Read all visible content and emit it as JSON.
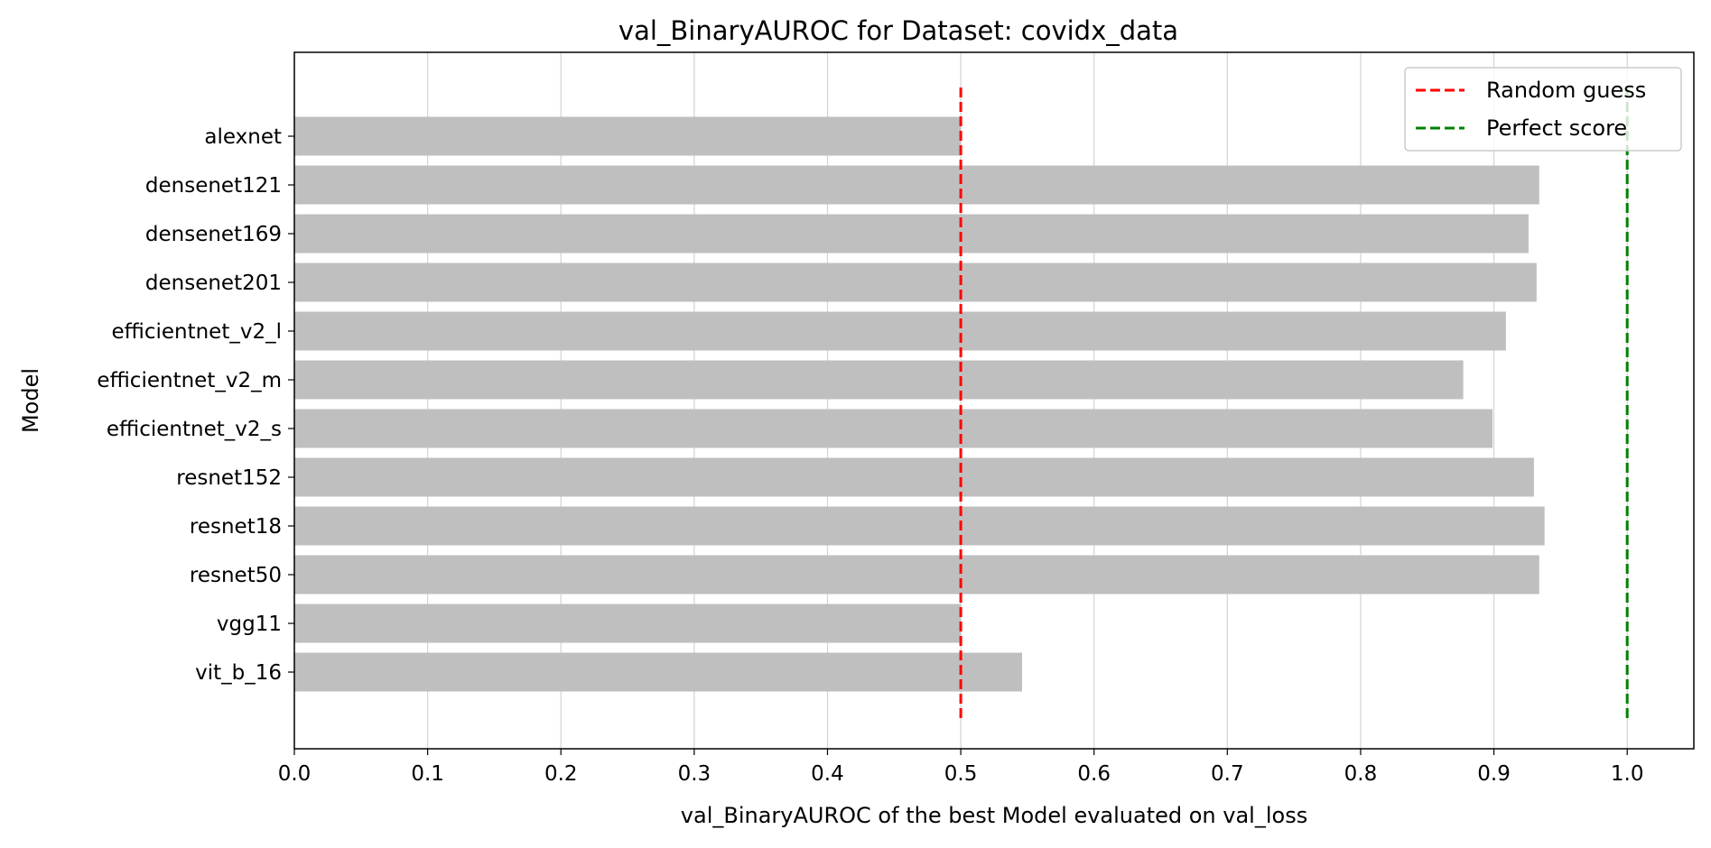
{
  "chart_data": {
    "type": "bar",
    "orientation": "horizontal",
    "title": "val_BinaryAUROC for Dataset: covidx_data",
    "xlabel": "val_BinaryAUROC of the best Model evaluated on val_loss",
    "ylabel": "Model",
    "xlim": [
      0.0,
      1.05
    ],
    "xticks": [
      0.0,
      0.1,
      0.2,
      0.3,
      0.4,
      0.5,
      0.6,
      0.7,
      0.8,
      0.9,
      1.0
    ],
    "xtick_labels": [
      "0.0",
      "0.1",
      "0.2",
      "0.3",
      "0.4",
      "0.5",
      "0.6",
      "0.7",
      "0.8",
      "0.9",
      "1.0"
    ],
    "grid": "vertical",
    "bar_color": "#bfbfbf",
    "categories": [
      "alexnet",
      "densenet121",
      "densenet169",
      "densenet201",
      "efficientnet_v2_l",
      "efficientnet_v2_m",
      "efficientnet_v2_s",
      "resnet152",
      "resnet18",
      "resnet50",
      "vgg11",
      "vit_b_16"
    ],
    "values": [
      0.5,
      0.934,
      0.926,
      0.932,
      0.909,
      0.877,
      0.899,
      0.93,
      0.938,
      0.934,
      0.5,
      0.546
    ],
    "reference_lines": [
      {
        "name": "Random guess",
        "x": 0.5,
        "color": "#ff0000",
        "style": "dashed"
      },
      {
        "name": "Perfect score",
        "x": 1.0,
        "color": "#008000",
        "style": "dashed"
      }
    ],
    "legend_position": "top-right"
  }
}
